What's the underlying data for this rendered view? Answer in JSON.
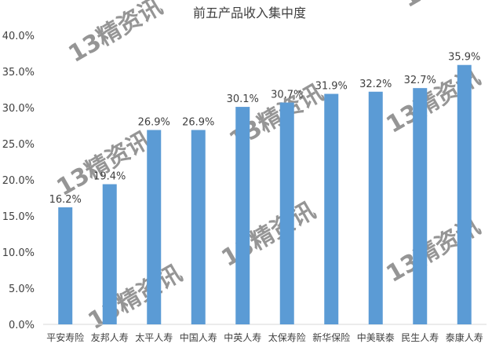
{
  "chart_data": {
    "type": "bar",
    "title": "前五产品收入集中度",
    "categories": [
      "平安寿险",
      "友邦人寿",
      "太平人寿",
      "中国人寿",
      "中英人寿",
      "太保寿险",
      "新华保险",
      "中美联泰",
      "民生人寿",
      "泰康人寿"
    ],
    "values": [
      16.2,
      19.4,
      26.9,
      26.9,
      30.1,
      30.7,
      31.9,
      32.2,
      32.7,
      35.9
    ],
    "data_labels": [
      "16.2%",
      "19.4%",
      "26.9%",
      "26.9%",
      "30.1%",
      "30.7%",
      "31.9%",
      "32.2%",
      "32.7%",
      "35.9%"
    ],
    "yticks": [
      "0.0%",
      "5.0%",
      "10.0%",
      "15.0%",
      "20.0%",
      "25.0%",
      "30.0%",
      "35.0%",
      "40.0%"
    ],
    "ylim": [
      0,
      40
    ],
    "grid": false,
    "bar_color": "#5b9bd5",
    "watermark": "13精资讯"
  }
}
